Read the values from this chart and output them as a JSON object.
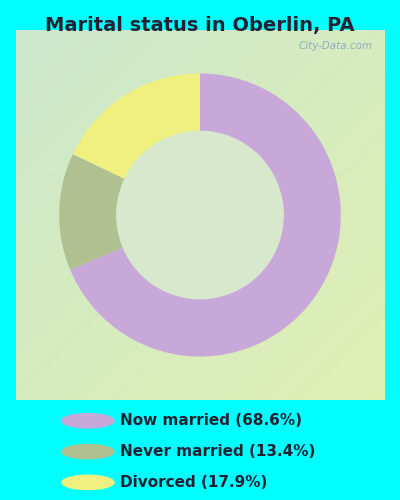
{
  "title": "Marital status in Oberlin, PA",
  "bg_cyan": "#00FFFF",
  "chart_bg_color": "#d8edd8",
  "slices": [
    {
      "label": "Now married (68.6%)",
      "value": 68.6,
      "color": "#c8a8d8"
    },
    {
      "label": "Never married (13.4%)",
      "value": 13.4,
      "color": "#b0c090"
    },
    {
      "label": "Divorced (17.9%)",
      "value": 17.9,
      "color": "#f0f080"
    }
  ],
  "watermark": "City-Data.com",
  "start_angle": 90,
  "title_color": "#222233",
  "legend_text_color": "#222233",
  "title_fontsize": 14,
  "legend_fontsize": 11
}
